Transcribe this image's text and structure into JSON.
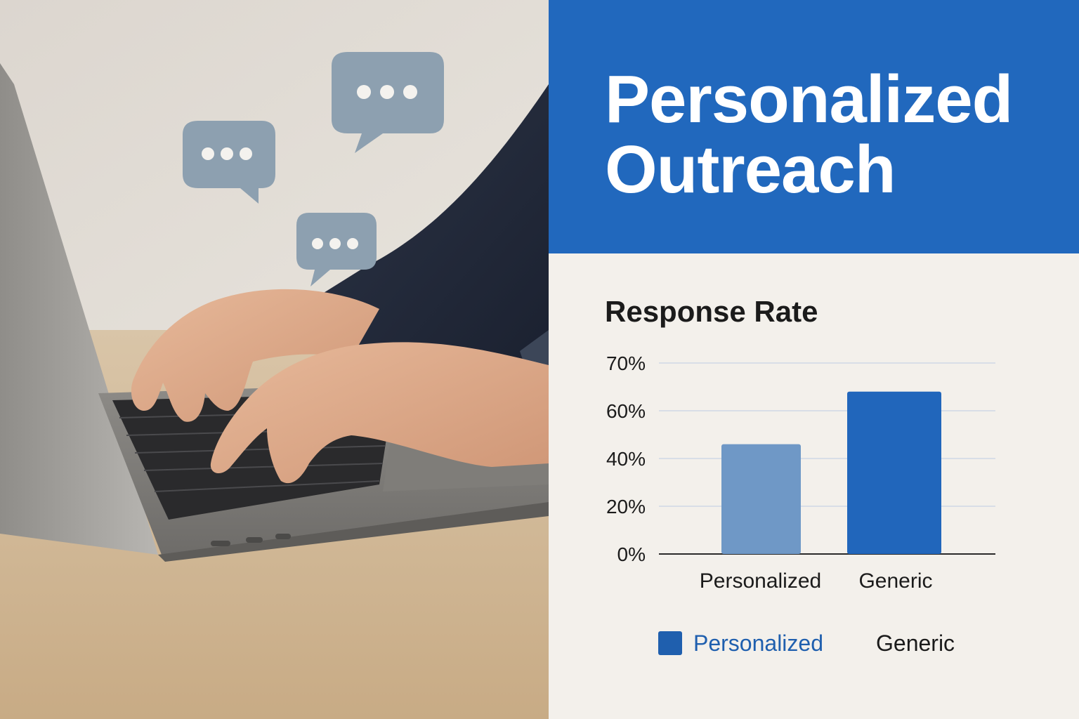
{
  "header": {
    "title_line_1": "Personalized",
    "title_line_2": "Outreach"
  },
  "colors": {
    "header_bg": "#2168bd",
    "panel_bg": "#f3f0eb",
    "personalized_bar": "#6f98c6",
    "generic_bar": "#2166bb",
    "legend_personalized": "#1f5fae"
  },
  "chart_data": {
    "type": "bar",
    "title": "Response Rate",
    "categories": [
      "Personalized",
      "Generic"
    ],
    "values": [
      46,
      68
    ],
    "y_ticks": [
      "0%",
      "20%",
      "40%",
      "60%",
      "70%"
    ],
    "grid": true,
    "legend": {
      "placement": "bottom",
      "items": [
        "Personalized",
        "Generic"
      ]
    }
  },
  "illustration": {
    "icons": [
      "laptop-icon",
      "speech-bubble-icon"
    ]
  }
}
